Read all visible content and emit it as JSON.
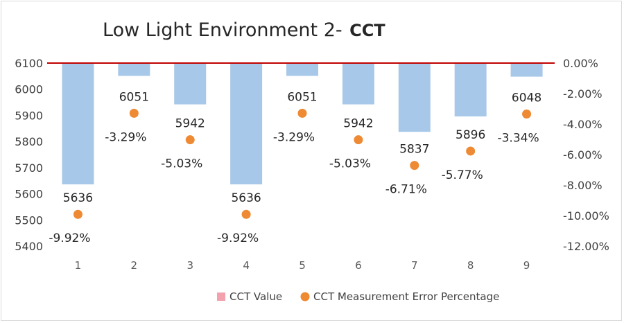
{
  "chart_data": {
    "type": "bar",
    "title_main": "Low Light Environment 2-",
    "title_suffix": "CCT",
    "categories": [
      "1",
      "2",
      "3",
      "4",
      "5",
      "6",
      "7",
      "8",
      "9"
    ],
    "series": [
      {
        "name": "CCT Value",
        "type": "bar",
        "axis": "left",
        "values": [
          5636,
          6051,
          5942,
          5636,
          6051,
          5942,
          5837,
          5896,
          6048
        ],
        "labels": [
          "5636",
          "6051",
          "5942",
          "5636",
          "6051",
          "5942",
          "5837",
          "5896",
          "6048"
        ],
        "color": "#a7c8e8",
        "legend_color": "#f2a1ad"
      },
      {
        "name": "CCT Measurement Error Percentage",
        "type": "scatter",
        "axis": "right",
        "values": [
          -9.92,
          -3.29,
          -5.03,
          -9.92,
          -3.29,
          -5.03,
          -6.71,
          -5.77,
          -3.34
        ],
        "labels": [
          "-9.92%",
          "-3.29%",
          "-5.03%",
          "-9.92%",
          "-3.29%",
          "-5.03%",
          "-6.71%",
          "-5.77%",
          "-3.34%"
        ],
        "color": "#ee8a33"
      }
    ],
    "y_left": {
      "min": 5400,
      "max": 6100,
      "ticks": [
        "6100",
        "6000",
        "5900",
        "5800",
        "5700",
        "5600",
        "5500",
        "5400"
      ],
      "tick_values": [
        6100,
        6000,
        5900,
        5800,
        5700,
        5600,
        5500,
        5400
      ]
    },
    "y_right": {
      "min": -12,
      "max": 0,
      "ticks": [
        "0.00%",
        "-2.00%",
        "-4.00%",
        "-6.00%",
        "-8.00%",
        "-10.00%",
        "-12.00%"
      ],
      "tick_values": [
        0,
        -2,
        -4,
        -6,
        -8,
        -10,
        -12
      ]
    },
    "baseline_color": "#c00000",
    "grid": false,
    "legend_position": "bottom"
  }
}
